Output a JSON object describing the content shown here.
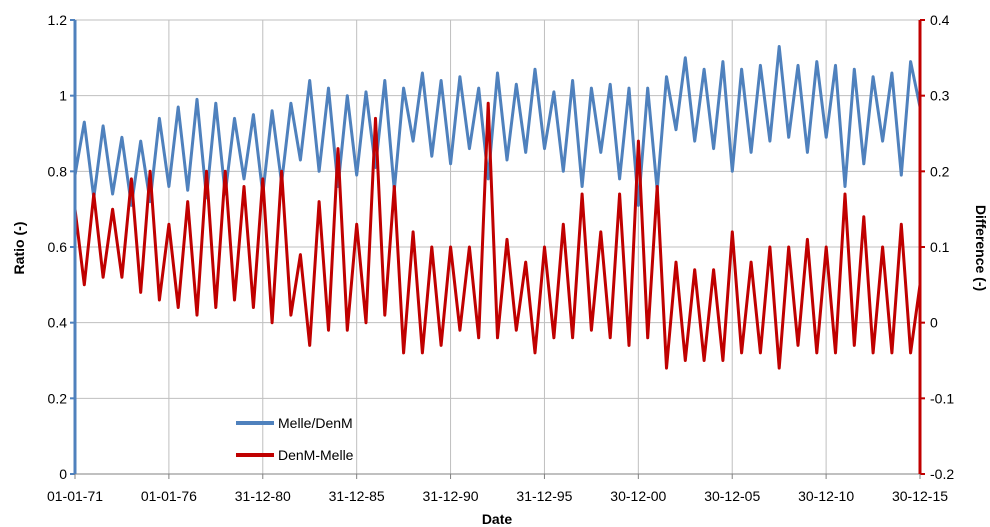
{
  "chart_data": {
    "type": "line",
    "title": "",
    "xlabel": "Date",
    "ylabel_left": "Ratio (-)",
    "ylabel_right": "Difference (-)",
    "xlim": [
      "1971-01-01",
      "2015-12-30"
    ],
    "ylim_left": [
      0,
      1.2
    ],
    "ylim_right": [
      -0.2,
      0.4
    ],
    "grid": true,
    "legend_position": "bottom-left",
    "x_tick_labels": [
      "01-01-71",
      "01-01-76",
      "31-12-80",
      "31-12-85",
      "31-12-90",
      "31-12-95",
      "30-12-00",
      "30-12-05",
      "30-12-10",
      "30-12-15"
    ],
    "left_tick_labels": [
      "0",
      "0.2",
      "0.4",
      "0.6",
      "0.8",
      "1",
      "1.2"
    ],
    "right_tick_labels": [
      "-0.2",
      "-0.1",
      "0",
      "0.1",
      "0.2",
      "0.3",
      "0.4"
    ],
    "series": [
      {
        "name": "Melle/DenM",
        "axis": "left",
        "color": "#4F81BD",
        "x": [
          "1971-01-01",
          "1971-07-01",
          "1972-01-01",
          "1972-07-01",
          "1973-01-01",
          "1973-07-01",
          "1974-01-01",
          "1974-07-01",
          "1975-01-01",
          "1975-07-01",
          "1976-01-01",
          "1976-07-01",
          "1977-01-01",
          "1977-07-01",
          "1978-01-01",
          "1978-07-01",
          "1979-01-01",
          "1979-07-01",
          "1980-01-01",
          "1980-07-01",
          "1981-01-01",
          "1981-07-01",
          "1982-01-01",
          "1982-07-01",
          "1983-01-01",
          "1983-07-01",
          "1984-01-01",
          "1984-07-01",
          "1985-01-01",
          "1985-07-01",
          "1986-01-01",
          "1986-07-01",
          "1987-01-01",
          "1987-07-01",
          "1988-01-01",
          "1988-07-01",
          "1989-01-01",
          "1989-07-01",
          "1990-01-01",
          "1990-07-01",
          "1991-01-01",
          "1991-07-01",
          "1992-01-01",
          "1992-07-01",
          "1993-01-01",
          "1993-07-01",
          "1994-01-01",
          "1994-07-01",
          "1995-01-01",
          "1995-07-01",
          "1996-01-01",
          "1996-07-01",
          "1997-01-01",
          "1997-07-01",
          "1998-01-01",
          "1998-07-01",
          "1999-01-01",
          "1999-07-01",
          "2000-01-01",
          "2000-07-01",
          "2001-01-01",
          "2001-07-01",
          "2002-01-01",
          "2002-07-01",
          "2003-01-01",
          "2003-07-01",
          "2004-01-01",
          "2004-07-01",
          "2005-01-01",
          "2005-07-01",
          "2006-01-01",
          "2006-07-01",
          "2007-01-01",
          "2007-07-01",
          "2008-01-01",
          "2008-07-01",
          "2009-01-01",
          "2009-07-01",
          "2010-01-01",
          "2010-07-01",
          "2011-01-01",
          "2011-07-01",
          "2012-01-01",
          "2012-07-01",
          "2013-01-01",
          "2013-07-01",
          "2014-01-01",
          "2014-07-01",
          "2015-01-01",
          "2015-07-01",
          "2015-12-30"
        ],
        "values": [
          0.79,
          0.93,
          0.73,
          0.92,
          0.74,
          0.89,
          0.71,
          0.88,
          0.72,
          0.94,
          0.76,
          0.97,
          0.75,
          0.99,
          0.73,
          0.98,
          0.74,
          0.94,
          0.78,
          0.95,
          0.74,
          0.96,
          0.77,
          0.98,
          0.83,
          1.04,
          0.8,
          1.02,
          0.76,
          1.0,
          0.79,
          1.01,
          0.81,
          1.04,
          0.75,
          1.02,
          0.88,
          1.06,
          0.84,
          1.04,
          0.82,
          1.05,
          0.86,
          1.02,
          0.78,
          1.06,
          0.83,
          1.03,
          0.85,
          1.07,
          0.86,
          1.01,
          0.8,
          1.04,
          0.76,
          1.02,
          0.85,
          1.03,
          0.78,
          1.02,
          0.71,
          1.02,
          0.75,
          1.05,
          0.91,
          1.1,
          0.88,
          1.07,
          0.86,
          1.09,
          0.8,
          1.07,
          0.85,
          1.08,
          0.88,
          1.13,
          0.89,
          1.08,
          0.85,
          1.09,
          0.89,
          1.08,
          0.76,
          1.07,
          0.82,
          1.05,
          0.88,
          1.06,
          0.79,
          1.09,
          0.97
        ]
      },
      {
        "name": "DenM-Melle",
        "axis": "right",
        "color": "#C00000",
        "x": [
          "1971-01-01",
          "1971-07-01",
          "1972-01-01",
          "1972-07-01",
          "1973-01-01",
          "1973-07-01",
          "1974-01-01",
          "1974-07-01",
          "1975-01-01",
          "1975-07-01",
          "1976-01-01",
          "1976-07-01",
          "1977-01-01",
          "1977-07-01",
          "1978-01-01",
          "1978-07-01",
          "1979-01-01",
          "1979-07-01",
          "1980-01-01",
          "1980-07-01",
          "1981-01-01",
          "1981-07-01",
          "1982-01-01",
          "1982-07-01",
          "1983-01-01",
          "1983-07-01",
          "1984-01-01",
          "1984-07-01",
          "1985-01-01",
          "1985-07-01",
          "1986-01-01",
          "1986-07-01",
          "1987-01-01",
          "1987-07-01",
          "1988-01-01",
          "1988-07-01",
          "1989-01-01",
          "1989-07-01",
          "1990-01-01",
          "1990-07-01",
          "1991-01-01",
          "1991-07-01",
          "1992-01-01",
          "1992-07-01",
          "1993-01-01",
          "1993-07-01",
          "1994-01-01",
          "1994-07-01",
          "1995-01-01",
          "1995-07-01",
          "1996-01-01",
          "1996-07-01",
          "1997-01-01",
          "1997-07-01",
          "1998-01-01",
          "1998-07-01",
          "1999-01-01",
          "1999-07-01",
          "2000-01-01",
          "2000-07-01",
          "2001-01-01",
          "2001-07-01",
          "2002-01-01",
          "2002-07-01",
          "2003-01-01",
          "2003-07-01",
          "2004-01-01",
          "2004-07-01",
          "2005-01-01",
          "2005-07-01",
          "2006-01-01",
          "2006-07-01",
          "2007-01-01",
          "2007-07-01",
          "2008-01-01",
          "2008-07-01",
          "2009-01-01",
          "2009-07-01",
          "2010-01-01",
          "2010-07-01",
          "2011-01-01",
          "2011-07-01",
          "2012-01-01",
          "2012-07-01",
          "2013-01-01",
          "2013-07-01",
          "2014-01-01",
          "2014-07-01",
          "2015-01-01",
          "2015-07-01",
          "2015-12-30"
        ],
        "values": [
          0.15,
          0.05,
          0.17,
          0.06,
          0.15,
          0.06,
          0.19,
          0.04,
          0.2,
          0.03,
          0.13,
          0.02,
          0.16,
          0.01,
          0.2,
          0.02,
          0.2,
          0.03,
          0.18,
          0.02,
          0.19,
          0.0,
          0.2,
          0.01,
          0.09,
          -0.03,
          0.16,
          -0.01,
          0.23,
          -0.01,
          0.13,
          0.0,
          0.27,
          0.01,
          0.18,
          -0.04,
          0.12,
          -0.04,
          0.1,
          -0.03,
          0.1,
          -0.01,
          0.1,
          -0.02,
          0.29,
          -0.02,
          0.11,
          -0.01,
          0.08,
          -0.04,
          0.1,
          -0.02,
          0.13,
          -0.02,
          0.17,
          -0.01,
          0.12,
          -0.02,
          0.17,
          -0.03,
          0.24,
          -0.02,
          0.18,
          -0.06,
          0.08,
          -0.05,
          0.07,
          -0.05,
          0.07,
          -0.05,
          0.12,
          -0.04,
          0.08,
          -0.04,
          0.1,
          -0.06,
          0.1,
          -0.03,
          0.11,
          -0.04,
          0.1,
          -0.04,
          0.17,
          -0.03,
          0.14,
          -0.04,
          0.1,
          -0.04,
          0.13,
          -0.04,
          0.05
        ]
      }
    ]
  }
}
